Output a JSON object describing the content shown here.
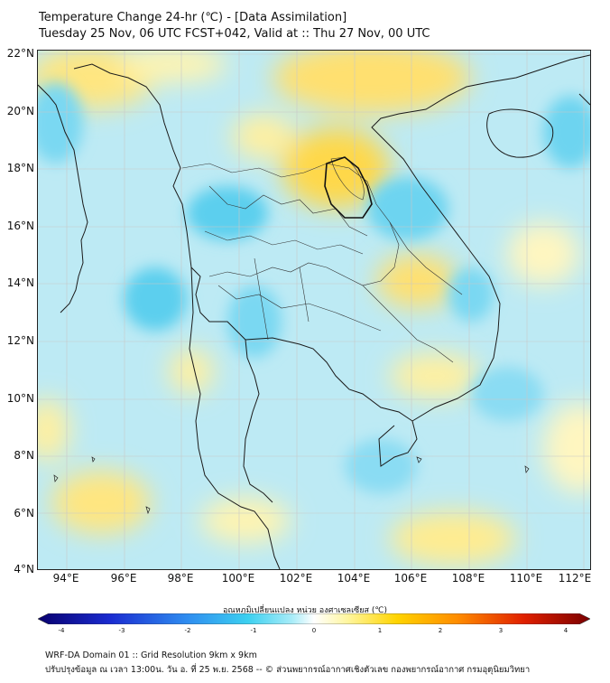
{
  "header": {
    "title": "Temperature Change 24-hr (℃) - [Data Assimilation]",
    "subtitle": "Tuesday 25 Nov, 06 UTC FCST+042, Valid at :: Thu 27 Nov, 00 UTC"
  },
  "axes": {
    "lat_labels": [
      "22°N",
      "20°N",
      "18°N",
      "16°N",
      "14°N",
      "12°N",
      "10°N",
      "8°N",
      "6°N",
      "4°N"
    ],
    "lon_labels": [
      "94°E",
      "96°E",
      "98°E",
      "100°E",
      "102°E",
      "104°E",
      "106°E",
      "108°E",
      "110°E",
      "112°E"
    ],
    "lat_range": [
      4,
      22
    ],
    "lon_range": [
      93,
      112.2
    ]
  },
  "colorbar": {
    "title": "อุณหภูมิเปลี่ยนแปลง หน่วย องศาเซลเซียส (℃)",
    "ticks": [
      "-4",
      "-3",
      "-2",
      "-1",
      "0",
      "1",
      "2",
      "3",
      "4"
    ],
    "range": [
      -4,
      4
    ],
    "colors": [
      "#08006e",
      "#1a2bd0",
      "#2f8df0",
      "#3cd0f0",
      "#a8ecf8",
      "#ffffff",
      "#fff6a0",
      "#ffd400",
      "#ff8c00",
      "#e02000",
      "#7a0000"
    ]
  },
  "footer": {
    "line1": "WRF-DA Domain 01 :: Grid Resolution 9km x 9km",
    "line2": "ปรับปรุงข้อมูล ณ เวลา 13:00น. วัน อ. ที่ 25 พ.ย. 2568 -- © ส่วนพยากรณ์อากาศเชิงตัวเลข กองพยากรณ์อากาศ กรมอุตุนิยมวิทยา"
  }
}
